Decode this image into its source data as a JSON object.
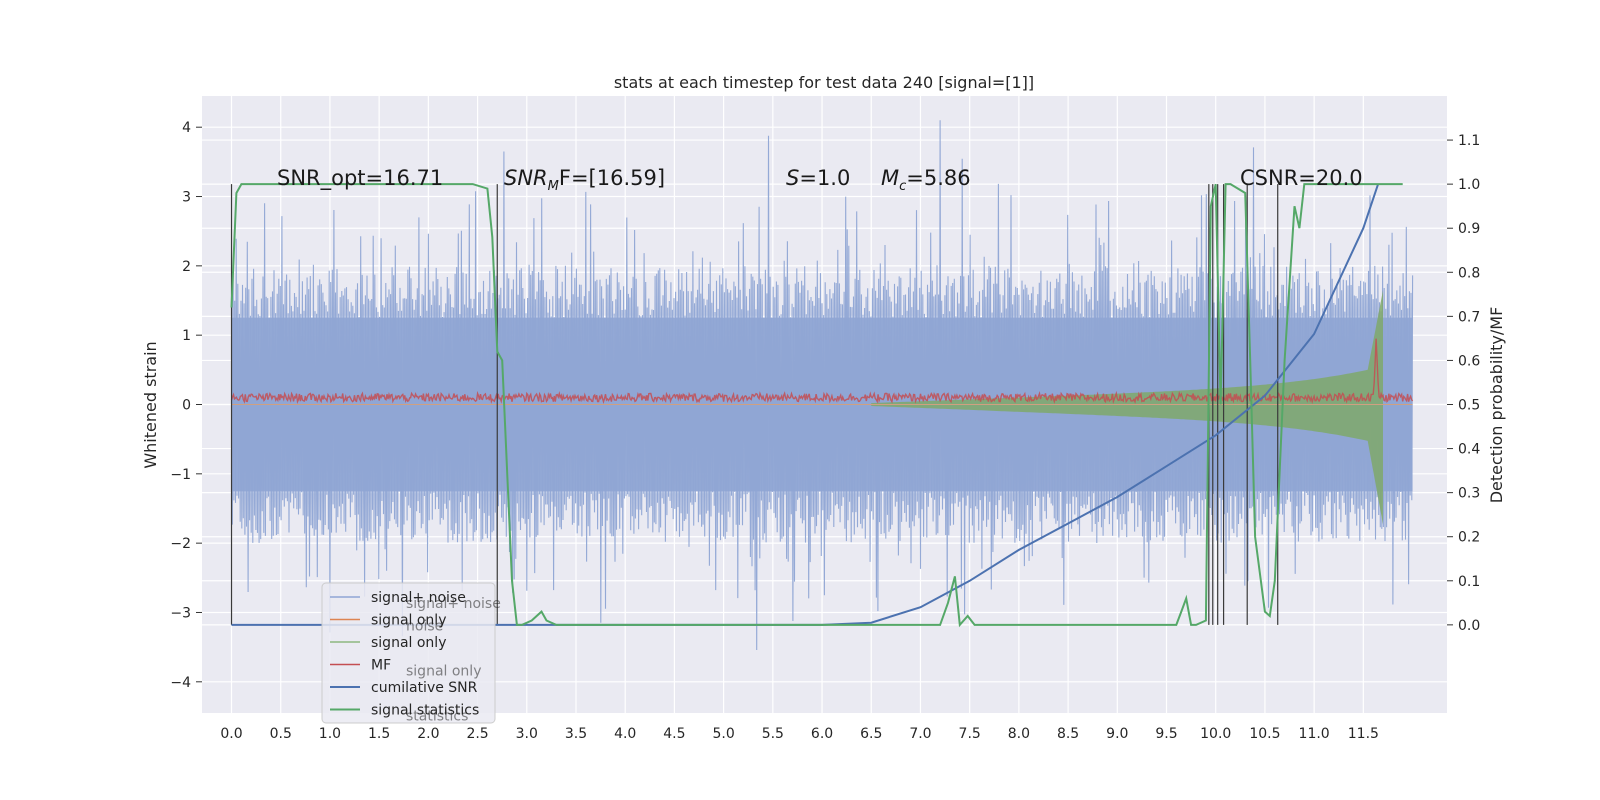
{
  "chart_data": {
    "type": "line",
    "title": "stats at each timestep for test data 240 [signal=[1]]",
    "ylabel": "Whitened strain",
    "ylabel_right": "Detection probability/MF",
    "xlim": [
      -0.3,
      12.35
    ],
    "ylim": [
      -4.45,
      4.45
    ],
    "ylim_right": [
      -0.2,
      1.2
    ],
    "x_ticks": [
      "0.0",
      "0.5",
      "1.0",
      "1.5",
      "2.0",
      "2.5",
      "3.0",
      "3.5",
      "4.0",
      "4.5",
      "5.0",
      "5.5",
      "6.0",
      "6.5",
      "7.0",
      "7.5",
      "8.0",
      "8.5",
      "9.0",
      "9.5",
      "10.0",
      "10.5",
      "11.0",
      "11.5"
    ],
    "y_ticks": [
      "4",
      "3",
      "2",
      "1",
      "0",
      "−1",
      "−2",
      "−3",
      "−4"
    ],
    "y_ticks_right": [
      "1.1",
      "1.0",
      "0.9",
      "0.8",
      "0.7",
      "0.6",
      "0.5",
      "0.4",
      "0.3",
      "0.2",
      "0.1",
      "0.0"
    ],
    "grid": true,
    "legend_placement": "lower-left",
    "annotations": {
      "snr_opt": "SNR_opt=16.71",
      "snr_mf_main": "SNR",
      "snr_mf_sub": "M",
      "snr_mf_tail": "F=[16.59]",
      "s_main": "S",
      "s_tail": "=1.0",
      "mc_main": "M",
      "mc_sub": "c",
      "mc_tail": "=5.86",
      "csnr": "CSNR=20.0"
    },
    "series": [
      {
        "name": "signal+ noise",
        "color": "#8fa5d4",
        "axis": "left",
        "x_range": [
          0,
          12.0
        ],
        "envelope_typical": 1.9,
        "peak": 4.1
      },
      {
        "name": "signal only",
        "color": "#dd8452",
        "axis": "left"
      },
      {
        "name": "signal only",
        "color": "#8cb87f",
        "axis": "left",
        "x_range": [
          6.5,
          11.7
        ],
        "amplitude_end": 1.7
      },
      {
        "name": "MF",
        "color": "#c44e52",
        "axis": "left",
        "level": 0.1,
        "peak": 0.95
      },
      {
        "name": "cumilative SNR",
        "color": "#4c72b0",
        "axis": "right",
        "x": [
          0,
          6.0,
          6.5,
          7.0,
          7.5,
          8.0,
          8.5,
          9.0,
          9.5,
          10.0,
          10.5,
          11.0,
          11.5,
          11.65
        ],
        "y": [
          0,
          0,
          0.005,
          0.04,
          0.1,
          0.17,
          0.23,
          0.29,
          0.36,
          0.43,
          0.52,
          0.66,
          0.9,
          1.0
        ]
      },
      {
        "name": "signal statistics",
        "color": "#55a868",
        "axis": "right",
        "x": [
          0,
          0.05,
          0.1,
          2.45,
          2.6,
          2.65,
          2.7,
          2.75,
          2.85,
          2.9,
          2.95,
          3.05,
          3.15,
          3.2,
          3.3,
          7.2,
          7.28,
          7.35,
          7.4,
          7.48,
          7.55,
          7.6,
          9.6,
          9.65,
          9.7,
          9.75,
          9.8,
          9.9,
          9.95,
          10.0,
          10.05,
          10.1,
          10.15,
          10.3,
          10.35,
          10.4,
          10.5,
          10.55,
          10.6,
          10.7,
          10.8,
          10.85,
          10.9,
          11.0,
          11.2,
          11.9
        ],
        "y": [
          0.72,
          0.98,
          1.0,
          1.0,
          0.99,
          0.88,
          0.62,
          0.6,
          0.1,
          0.0,
          0.0,
          0.01,
          0.03,
          0.01,
          0.0,
          0.0,
          0.05,
          0.11,
          0.0,
          0.02,
          0.0,
          0.0,
          0.0,
          0.03,
          0.06,
          0.0,
          0.0,
          0.01,
          0.95,
          1.0,
          0.5,
          1.0,
          1.0,
          0.98,
          0.6,
          0.2,
          0.03,
          0.02,
          0.1,
          0.6,
          0.95,
          0.9,
          1.0,
          1.0,
          1.0,
          1.0
        ]
      }
    ],
    "vlines_x": [
      0.0,
      2.7,
      9.93,
      9.97,
      10.02,
      10.08,
      10.32,
      10.63
    ]
  },
  "legend": [
    {
      "label": "signal+ noise",
      "color": "#8fa5d4",
      "faint": "signal+ noise"
    },
    {
      "label": "signal only",
      "color": "#dd8452",
      "faint": "noise"
    },
    {
      "label": "signal only",
      "color": "#8cb87f",
      "faint": ""
    },
    {
      "label": "MF",
      "color": "#c44e52",
      "faint": "signal only"
    },
    {
      "label": "cumilative SNR",
      "color": "#4c72b0",
      "faint": ""
    },
    {
      "label": "signal statistics",
      "color": "#55a868",
      "faint": "statistics"
    }
  ]
}
